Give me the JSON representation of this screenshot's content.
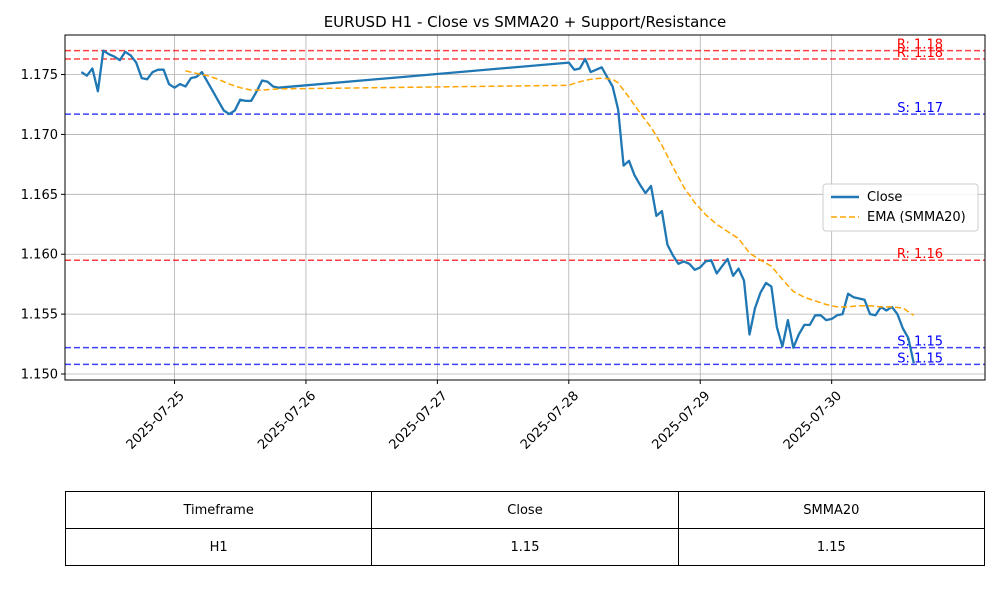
{
  "chart_data": {
    "type": "line",
    "title": "EURUSD H1 - Close vs SMMA20 + Support/Resistance",
    "xlabel": "",
    "ylabel": "",
    "x_tick_labels": [
      "2025-07-25",
      "2025-07-26",
      "2025-07-27",
      "2025-07-28",
      "2025-07-29",
      "2025-07-30"
    ],
    "y_tick_labels": [
      "1.150",
      "1.155",
      "1.160",
      "1.165",
      "1.170",
      "1.175"
    ],
    "ylim": [
      1.1495,
      1.1783
    ],
    "xlim": [
      "2025-07-24 04:00",
      "2025-07-31 04:00"
    ],
    "grid": true,
    "legend_position": "center right",
    "series": [
      {
        "name": "Close",
        "color": "#1f77b4",
        "style": "solid",
        "points": [
          [
            "2025-07-24 07:00",
            1.1752
          ],
          [
            "2025-07-24 08:00",
            1.1749
          ],
          [
            "2025-07-24 09:00",
            1.1755
          ],
          [
            "2025-07-24 10:00",
            1.1736
          ],
          [
            "2025-07-24 11:00",
            1.177
          ],
          [
            "2025-07-24 12:00",
            1.1767
          ],
          [
            "2025-07-24 13:00",
            1.1765
          ],
          [
            "2025-07-24 14:00",
            1.1762
          ],
          [
            "2025-07-24 15:00",
            1.1769
          ],
          [
            "2025-07-24 16:00",
            1.1766
          ],
          [
            "2025-07-24 17:00",
            1.176
          ],
          [
            "2025-07-24 18:00",
            1.1747
          ],
          [
            "2025-07-24 19:00",
            1.1746
          ],
          [
            "2025-07-24 20:00",
            1.1752
          ],
          [
            "2025-07-24 21:00",
            1.1754
          ],
          [
            "2025-07-24 22:00",
            1.1754
          ],
          [
            "2025-07-24 23:00",
            1.1742
          ],
          [
            "2025-07-25 00:00",
            1.1739
          ],
          [
            "2025-07-25 01:00",
            1.1742
          ],
          [
            "2025-07-25 02:00",
            1.174
          ],
          [
            "2025-07-25 03:00",
            1.1747
          ],
          [
            "2025-07-25 04:00",
            1.1748
          ],
          [
            "2025-07-25 05:00",
            1.1752
          ],
          [
            "2025-07-25 06:00",
            1.1744
          ],
          [
            "2025-07-25 07:00",
            1.1736
          ],
          [
            "2025-07-25 08:00",
            1.1728
          ],
          [
            "2025-07-25 09:00",
            1.172
          ],
          [
            "2025-07-25 10:00",
            1.1717
          ],
          [
            "2025-07-25 11:00",
            1.172
          ],
          [
            "2025-07-25 12:00",
            1.1729
          ],
          [
            "2025-07-25 13:00",
            1.1728
          ],
          [
            "2025-07-25 14:00",
            1.1728
          ],
          [
            "2025-07-25 15:00",
            1.1736
          ],
          [
            "2025-07-25 16:00",
            1.1745
          ],
          [
            "2025-07-25 17:00",
            1.1744
          ],
          [
            "2025-07-25 18:00",
            1.174
          ],
          [
            "2025-07-25 19:00",
            1.1739
          ],
          [
            "2025-07-28 00:00",
            1.176
          ],
          [
            "2025-07-28 01:00",
            1.1754
          ],
          [
            "2025-07-28 02:00",
            1.1755
          ],
          [
            "2025-07-28 03:00",
            1.1763
          ],
          [
            "2025-07-28 04:00",
            1.1752
          ],
          [
            "2025-07-28 05:00",
            1.1754
          ],
          [
            "2025-07-28 06:00",
            1.1756
          ],
          [
            "2025-07-28 07:00",
            1.1748
          ],
          [
            "2025-07-28 08:00",
            1.174
          ],
          [
            "2025-07-28 09:00",
            1.1721
          ],
          [
            "2025-07-28 10:00",
            1.1674
          ],
          [
            "2025-07-28 11:00",
            1.1678
          ],
          [
            "2025-07-28 12:00",
            1.1666
          ],
          [
            "2025-07-28 13:00",
            1.1658
          ],
          [
            "2025-07-28 14:00",
            1.1651
          ],
          [
            "2025-07-28 15:00",
            1.1657
          ],
          [
            "2025-07-28 16:00",
            1.1632
          ],
          [
            "2025-07-28 17:00",
            1.1636
          ],
          [
            "2025-07-28 18:00",
            1.1608
          ],
          [
            "2025-07-28 19:00",
            1.1599
          ],
          [
            "2025-07-28 20:00",
            1.1592
          ],
          [
            "2025-07-28 21:00",
            1.1594
          ],
          [
            "2025-07-28 22:00",
            1.1592
          ],
          [
            "2025-07-28 23:00",
            1.1587
          ],
          [
            "2025-07-29 00:00",
            1.1589
          ],
          [
            "2025-07-29 01:00",
            1.1594
          ],
          [
            "2025-07-29 02:00",
            1.1595
          ],
          [
            "2025-07-29 03:00",
            1.1584
          ],
          [
            "2025-07-29 04:00",
            1.159
          ],
          [
            "2025-07-29 05:00",
            1.1596
          ],
          [
            "2025-07-29 06:00",
            1.1582
          ],
          [
            "2025-07-29 07:00",
            1.1588
          ],
          [
            "2025-07-29 08:00",
            1.1578
          ],
          [
            "2025-07-29 09:00",
            1.1533
          ],
          [
            "2025-07-29 10:00",
            1.1555
          ],
          [
            "2025-07-29 11:00",
            1.1568
          ],
          [
            "2025-07-29 12:00",
            1.1576
          ],
          [
            "2025-07-29 13:00",
            1.1573
          ],
          [
            "2025-07-29 14:00",
            1.1539
          ],
          [
            "2025-07-29 15:00",
            1.1523
          ],
          [
            "2025-07-29 16:00",
            1.1545
          ],
          [
            "2025-07-29 17:00",
            1.1522
          ],
          [
            "2025-07-29 18:00",
            1.1533
          ],
          [
            "2025-07-29 19:00",
            1.1541
          ],
          [
            "2025-07-29 20:00",
            1.1541
          ],
          [
            "2025-07-29 21:00",
            1.1549
          ],
          [
            "2025-07-29 22:00",
            1.1549
          ],
          [
            "2025-07-29 23:00",
            1.1545
          ],
          [
            "2025-07-30 00:00",
            1.1546
          ],
          [
            "2025-07-30 01:00",
            1.1549
          ],
          [
            "2025-07-30 02:00",
            1.155
          ],
          [
            "2025-07-30 03:00",
            1.1567
          ],
          [
            "2025-07-30 04:00",
            1.1564
          ],
          [
            "2025-07-30 05:00",
            1.1563
          ],
          [
            "2025-07-30 06:00",
            1.1562
          ],
          [
            "2025-07-30 07:00",
            1.155
          ],
          [
            "2025-07-30 08:00",
            1.1549
          ],
          [
            "2025-07-30 09:00",
            1.1556
          ],
          [
            "2025-07-30 10:00",
            1.1553
          ],
          [
            "2025-07-30 11:00",
            1.1556
          ],
          [
            "2025-07-30 12:00",
            1.155
          ],
          [
            "2025-07-30 13:00",
            1.1538
          ],
          [
            "2025-07-30 14:00",
            1.153
          ],
          [
            "2025-07-30 15:00",
            1.1509
          ]
        ]
      },
      {
        "name": "EMA (SMMA20)",
        "color": "#ffa500",
        "style": "dashed",
        "points": [
          [
            "2025-07-25 02:00",
            1.1753
          ],
          [
            "2025-07-25 04:00",
            1.1751
          ],
          [
            "2025-07-25 06:00",
            1.1749
          ],
          [
            "2025-07-25 08:00",
            1.1746
          ],
          [
            "2025-07-25 10:00",
            1.1742
          ],
          [
            "2025-07-25 12:00",
            1.1739
          ],
          [
            "2025-07-25 14:00",
            1.1737
          ],
          [
            "2025-07-25 16:00",
            1.1737
          ],
          [
            "2025-07-25 19:00",
            1.1738
          ],
          [
            "2025-07-28 00:00",
            1.1741
          ],
          [
            "2025-07-28 02:00",
            1.1744
          ],
          [
            "2025-07-28 04:00",
            1.1746
          ],
          [
            "2025-07-28 06:00",
            1.1747
          ],
          [
            "2025-07-28 08:00",
            1.1746
          ],
          [
            "2025-07-28 09:00",
            1.1743
          ],
          [
            "2025-07-28 11:00",
            1.1731
          ],
          [
            "2025-07-28 13:00",
            1.1718
          ],
          [
            "2025-07-28 15:00",
            1.1706
          ],
          [
            "2025-07-28 17:00",
            1.1691
          ],
          [
            "2025-07-28 19:00",
            1.1673
          ],
          [
            "2025-07-28 21:00",
            1.1656
          ],
          [
            "2025-07-28 23:00",
            1.1643
          ],
          [
            "2025-07-29 01:00",
            1.1633
          ],
          [
            "2025-07-29 03:00",
            1.1625
          ],
          [
            "2025-07-29 05:00",
            1.1619
          ],
          [
            "2025-07-29 07:00",
            1.1613
          ],
          [
            "2025-07-29 09:00",
            1.1601
          ],
          [
            "2025-07-29 11:00",
            1.1595
          ],
          [
            "2025-07-29 13:00",
            1.159
          ],
          [
            "2025-07-29 15:00",
            1.1579
          ],
          [
            "2025-07-29 17:00",
            1.1569
          ],
          [
            "2025-07-29 19:00",
            1.1564
          ],
          [
            "2025-07-29 21:00",
            1.1561
          ],
          [
            "2025-07-29 23:00",
            1.1558
          ],
          [
            "2025-07-30 01:00",
            1.1556
          ],
          [
            "2025-07-30 03:00",
            1.1556
          ],
          [
            "2025-07-30 05:00",
            1.1557
          ],
          [
            "2025-07-30 07:00",
            1.1557
          ],
          [
            "2025-07-30 09:00",
            1.1556
          ],
          [
            "2025-07-30 11:00",
            1.1556
          ],
          [
            "2025-07-30 13:00",
            1.1555
          ],
          [
            "2025-07-30 15:00",
            1.1549
          ]
        ]
      }
    ],
    "reference_lines": [
      {
        "kind": "resistance",
        "value": 1.177,
        "label": "R: 1.18",
        "color": "#ff0000"
      },
      {
        "kind": "resistance",
        "value": 1.1763,
        "label": "R: 1.18",
        "color": "#ff0000"
      },
      {
        "kind": "resistance",
        "value": 1.1595,
        "label": "R: 1.16",
        "color": "#ff0000"
      },
      {
        "kind": "support",
        "value": 1.1717,
        "label": "S: 1.17",
        "color": "#0000ff"
      },
      {
        "kind": "support",
        "value": 1.1522,
        "label": "S: 1.15",
        "color": "#0000ff"
      },
      {
        "kind": "support",
        "value": 1.1508,
        "label": "S: 1.15",
        "color": "#0000ff"
      }
    ]
  },
  "table": {
    "headers": [
      "Timeframe",
      "Close",
      "SMMA20"
    ],
    "row": [
      "H1",
      "1.15",
      "1.15"
    ]
  }
}
